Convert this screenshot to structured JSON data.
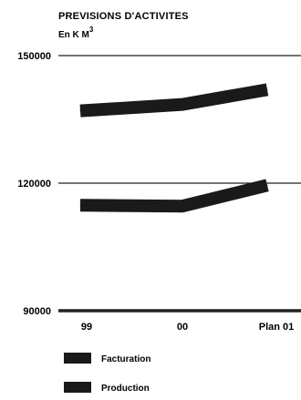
{
  "chart_data": {
    "type": "line",
    "title": "PREVISIONS D'ACTIVITES",
    "subtitle": "En K M",
    "subtitle_sup": "3",
    "categories": [
      "99",
      "00",
      "Plan 01"
    ],
    "ylim": [
      90000,
      150000
    ],
    "y_ticks": [
      "150000",
      "120000",
      "90000"
    ],
    "y_tick_values": [
      150000,
      120000,
      90000
    ],
    "series": [
      {
        "name": "Facturation",
        "values": [
          137000,
          138500,
          142000
        ]
      },
      {
        "name": "Production",
        "values": [
          114800,
          114600,
          119500
        ]
      }
    ],
    "legend_position": "bottom-left",
    "grid": true,
    "colors": {
      "series": "#1a1a1a",
      "grid": "#222222",
      "text": "#111111"
    }
  }
}
